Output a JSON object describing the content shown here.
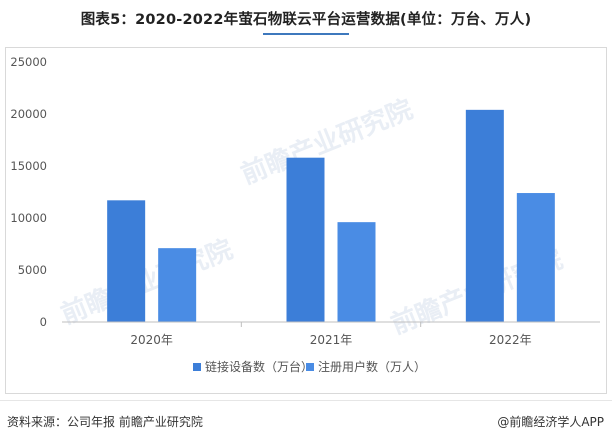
{
  "title": "图表5：2020-2022年萤石物联云平台运营数据(单位：万台、万人)",
  "source": "资料来源：公司年报 前瞻产业研究院",
  "brand": "@前瞻经济学人APP",
  "watermark": "前瞻产业研究院",
  "colors": {
    "series1": "#3c7ed8",
    "series2": "#4a8ce4",
    "axis": "#bfbfbf",
    "text": "#555555"
  },
  "chart_data": {
    "type": "bar",
    "categories": [
      "2020年",
      "2021年",
      "2022年"
    ],
    "series": [
      {
        "name": "链接设备数（万台）",
        "values": [
          11700,
          15800,
          20400
        ]
      },
      {
        "name": "注册用户数（万人）",
        "values": [
          7100,
          9600,
          12400
        ]
      }
    ],
    "ylim": [
      0,
      25000
    ],
    "yticks": [
      0,
      5000,
      10000,
      15000,
      20000,
      25000
    ],
    "xlabel": "",
    "ylabel": "",
    "grid": false,
    "legend": "bottom"
  }
}
